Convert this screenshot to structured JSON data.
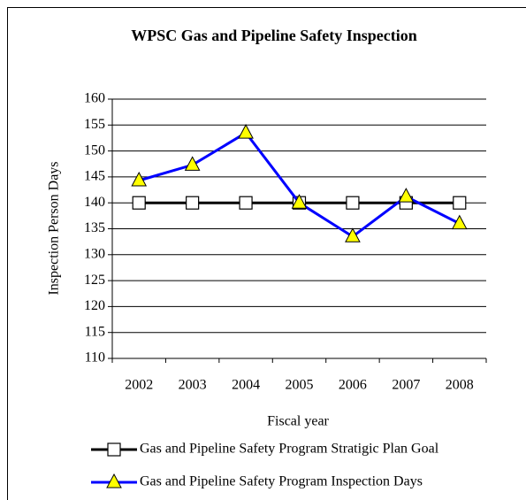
{
  "chart_data": {
    "type": "line",
    "title": "WPSC Gas and Pipeline Safety Inspection",
    "x_label": "Fiscal year",
    "y_label": "Inspection Person Days",
    "categories": [
      "2002",
      "2003",
      "2004",
      "2005",
      "2006",
      "2007",
      "2008"
    ],
    "series": [
      {
        "name": "Gas and Pipeline Safety Program Stratigic Plan Goal",
        "color": "#000000",
        "marker": "square",
        "marker_fill": "#ffffff",
        "values": [
          140,
          140,
          140,
          140,
          140,
          140,
          140
        ]
      },
      {
        "name": "Gas and Pipeline Safety Program Inspection Days",
        "color": "#0000ff",
        "marker": "triangle",
        "marker_fill": "#ffff00",
        "values": [
          144.3,
          147.3,
          153.5,
          140,
          133.5,
          141.2,
          136
        ]
      }
    ],
    "ylim": [
      110,
      160
    ],
    "yticks": [
      110,
      115,
      120,
      125,
      130,
      135,
      140,
      145,
      150,
      155,
      160
    ],
    "grid": true,
    "legend": "bottom"
  }
}
